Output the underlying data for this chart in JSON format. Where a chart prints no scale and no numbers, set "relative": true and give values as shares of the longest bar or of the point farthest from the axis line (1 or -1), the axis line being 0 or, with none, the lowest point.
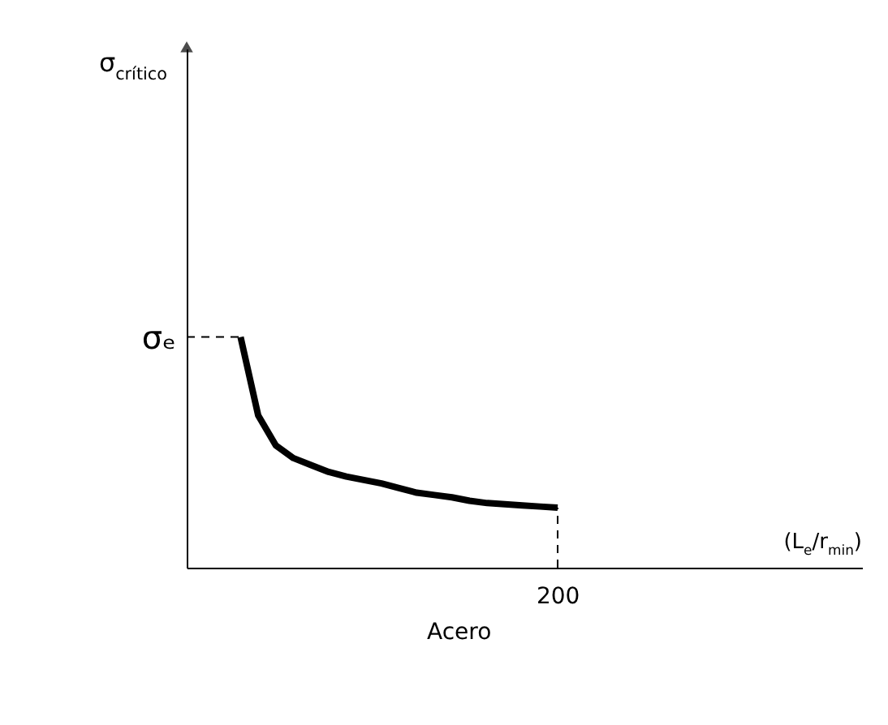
{
  "chart_data": {
    "type": "line",
    "relative": true,
    "categories": [
      null,
      null,
      null,
      null,
      null,
      null,
      null,
      null,
      null,
      null,
      null,
      null,
      null,
      null,
      null,
      null,
      null,
      null,
      null
    ],
    "series": [
      {
        "color": "#000000",
        "values": [
          1,
          0.66,
          0.53,
          0.475,
          0.445,
          0.415,
          0.395,
          0.38,
          0.365,
          0.345,
          0.325,
          0.315,
          0.305,
          0.29,
          0.28,
          0.275,
          0.27,
          0.265,
          0.26
        ],
        "line_style": "solid"
      }
    ],
    "annotations": [
      "σ$_{crítico}$",
      "(L$_{e}$/r$_{min}$)",
      "σₑ",
      "200",
      "Acero"
    ],
    "grid": false,
    "marker": "none"
  }
}
